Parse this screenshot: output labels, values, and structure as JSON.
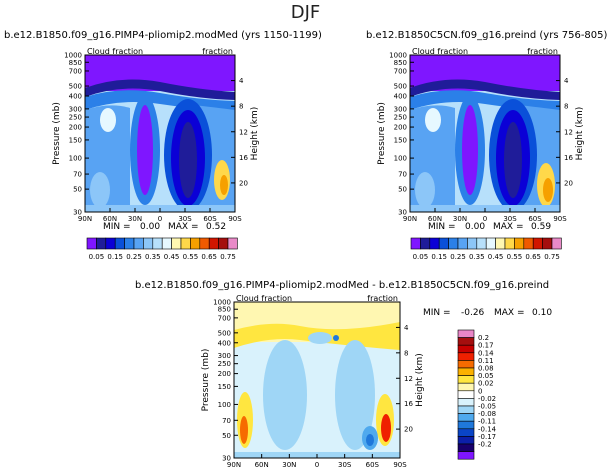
{
  "page_title": "DJF",
  "colors": {
    "ctrl_scale": [
      "#7f16ff",
      "#1f1c99",
      "#0b00d6",
      "#0a50d9",
      "#2b80e8",
      "#58a3f3",
      "#8cc6f8",
      "#b7e0fb",
      "#e6f8ff",
      "#fff7b1",
      "#ffd84a",
      "#f6a000",
      "#ef5a00",
      "#d11600",
      "#a50e0e",
      "#e98ac8"
    ],
    "diff_scale": [
      "#e986c7",
      "#a50e0e",
      "#c70000",
      "#ef2000",
      "#f66b00",
      "#fbb100",
      "#ffe640",
      "#fff7b1",
      "#ffffff",
      "#d9f2fc",
      "#9fd6f6",
      "#4fa9ee",
      "#1f78db",
      "#0a45c7",
      "#0c1fa9",
      "#18006c",
      "#7f16ff"
    ]
  },
  "chart_data": [
    {
      "type": "heatmap",
      "title": "b.e12.B1850.f09_g16.PIMP4-pliomip2.modMed (yrs 1150-1199)",
      "left_label": "Cloud fraction",
      "right_label": "fraction",
      "ylabel": "Pressure (mb)",
      "ylabel_right": "Height (km)",
      "x_ticks": [
        "90N",
        "60N",
        "30N",
        "0",
        "30S",
        "60S",
        "90S"
      ],
      "y_ticks": [
        "30",
        "50",
        "70",
        "100",
        "150",
        "200",
        "250",
        "300",
        "400",
        "500",
        "700",
        "850",
        "1000"
      ],
      "height_ticks": [
        "20",
        "16",
        "12",
        "8",
        "4"
      ],
      "ylim": [
        1000,
        30
      ],
      "stats": {
        "min_label": "MIN =",
        "min": "0.00",
        "max_label": "MAX =",
        "max": "0.52"
      }
    },
    {
      "type": "heatmap",
      "title": "b.e12.B1850C5CN.f09_g16.preind (yrs 756-805)",
      "left_label": "Cloud fraction",
      "right_label": "fraction",
      "ylabel": "Pressure (mb)",
      "ylabel_right": "Height (km)",
      "x_ticks": [
        "90N",
        "60N",
        "30N",
        "0",
        "30S",
        "60S",
        "90S"
      ],
      "y_ticks": [
        "30",
        "50",
        "70",
        "100",
        "150",
        "200",
        "250",
        "300",
        "400",
        "500",
        "700",
        "850",
        "1000"
      ],
      "height_ticks": [
        "20",
        "16",
        "12",
        "8",
        "4"
      ],
      "ylim": [
        1000,
        30
      ],
      "stats": {
        "min_label": "MIN =",
        "min": "0.00",
        "max_label": "MAX =",
        "max": "0.59"
      }
    },
    {
      "type": "heatmap",
      "title": "b.e12.B1850.f09_g16.PIMP4-pliomip2.modMed - b.e12.B1850C5CN.f09_g16.preind",
      "left_label": "Cloud fraction",
      "right_label": "fraction",
      "ylabel": "Pressure (mb)",
      "ylabel_right": "Height (km)",
      "x_ticks": [
        "90N",
        "60N",
        "30N",
        "0",
        "30S",
        "60S",
        "90S"
      ],
      "y_ticks": [
        "30",
        "50",
        "70",
        "100",
        "150",
        "200",
        "250",
        "300",
        "400",
        "500",
        "700",
        "850",
        "1000"
      ],
      "height_ticks": [
        "20",
        "16",
        "12",
        "8",
        "4"
      ],
      "ylim": [
        1000,
        30
      ],
      "stats": {
        "min_label": "MIN =",
        "min": "-0.26",
        "max_label": "MAX =",
        "max": "0.10"
      }
    }
  ],
  "legend_ctrl": {
    "labels": [
      "0.05",
      "0.15",
      "0.25",
      "0.35",
      "0.45",
      "0.55",
      "0.65",
      "0.75"
    ]
  },
  "legend_diff": {
    "labels": [
      "0.2",
      "0.17",
      "0.14",
      "0.11",
      "0.08",
      "0.05",
      "0.02",
      "0",
      "-0.02",
      "-0.05",
      "-0.08",
      "-0.11",
      "-0.14",
      "-0.17",
      "-0.2"
    ]
  }
}
